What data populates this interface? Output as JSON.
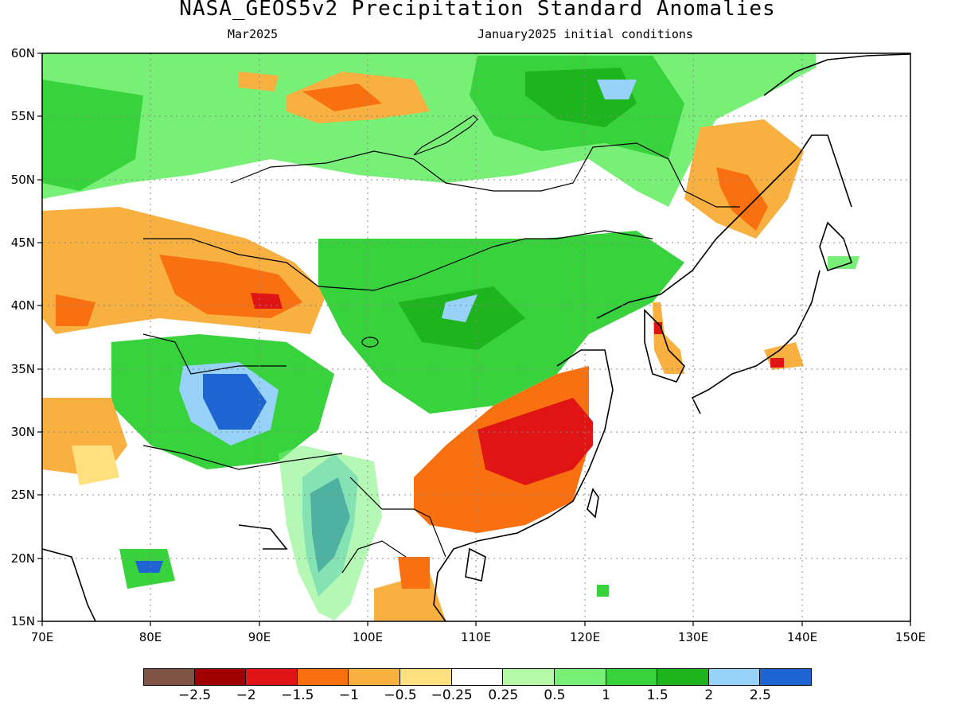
{
  "header": {
    "title": "NASA_GEOS5v2 Precipitation Standard Anomalies",
    "valid_month": "Mar2025",
    "init_conditions": "January2025 initial conditions"
  },
  "axes": {
    "lon_ticks": [
      "70E",
      "80E",
      "90E",
      "100E",
      "110E",
      "120E",
      "130E",
      "140E",
      "150E"
    ],
    "lat_ticks": [
      "60N",
      "55N",
      "50N",
      "45N",
      "40N",
      "35N",
      "30N",
      "25N",
      "20N",
      "15N"
    ],
    "lon_range": [
      70,
      150
    ],
    "lat_range": [
      15,
      60
    ]
  },
  "legend": {
    "colors": [
      "#7f5444",
      "#a00000",
      "#e01414",
      "#f87010",
      "#f8b040",
      "#ffe080",
      "#ffffff",
      "#b4f8a8",
      "#78f078",
      "#37d23c",
      "#1eb41e",
      "#96d2fa",
      "#1e64d2"
    ],
    "labels": [
      "−2.5",
      "−2",
      "−1.5",
      "−1",
      "−0.5",
      "−0.25",
      "0.25",
      "0.5",
      "1",
      "1.5",
      "2",
      "2.5"
    ]
  }
}
